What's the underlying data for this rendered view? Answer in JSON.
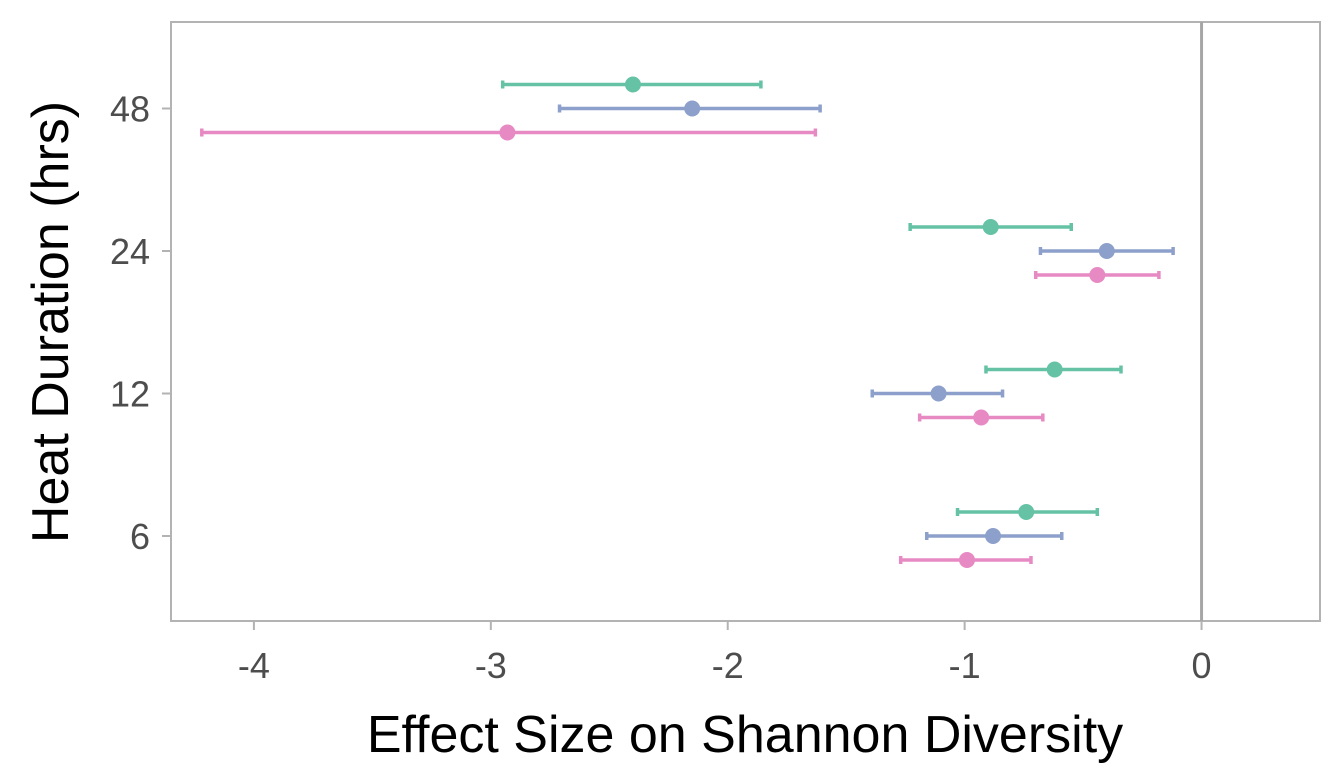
{
  "chart_data": {
    "type": "forest",
    "title": "",
    "xlabel": "Effect Size on Shannon Diversity",
    "ylabel": "Heat Duration (hrs)",
    "xlim": [
      -4.35,
      0.5
    ],
    "x_ticks": [
      "-4",
      "-3",
      "-2",
      "-1",
      "0"
    ],
    "y_ticks": [
      "6",
      "12",
      "24",
      "48"
    ],
    "categories": [
      "6",
      "12",
      "24",
      "48"
    ],
    "reference_line": 0,
    "grid": false,
    "legend": "none",
    "series": [
      {
        "color": "#66c2a5",
        "points": [
          {
            "category": "48",
            "estimate": -2.4,
            "low": -2.95,
            "high": -1.86
          },
          {
            "category": "24",
            "estimate": -0.89,
            "low": -1.23,
            "high": -0.55
          },
          {
            "category": "12",
            "estimate": -0.62,
            "low": -0.91,
            "high": -0.34
          },
          {
            "category": "6",
            "estimate": -0.74,
            "low": -1.03,
            "high": -0.44
          }
        ]
      },
      {
        "color": "#8da0cb",
        "points": [
          {
            "category": "48",
            "estimate": -2.15,
            "low": -2.71,
            "high": -1.61
          },
          {
            "category": "24",
            "estimate": -0.4,
            "low": -0.68,
            "high": -0.12
          },
          {
            "category": "12",
            "estimate": -1.11,
            "low": -1.39,
            "high": -0.84
          },
          {
            "category": "6",
            "estimate": -0.88,
            "low": -1.16,
            "high": -0.59
          }
        ]
      },
      {
        "color": "#e78ac3",
        "points": [
          {
            "category": "48",
            "estimate": -2.93,
            "low": -4.22,
            "high": -1.63
          },
          {
            "category": "24",
            "estimate": -0.44,
            "low": -0.7,
            "high": -0.18
          },
          {
            "category": "12",
            "estimate": -0.93,
            "low": -1.19,
            "high": -0.67
          },
          {
            "category": "6",
            "estimate": -0.99,
            "low": -1.27,
            "high": -0.72
          }
        ]
      }
    ]
  }
}
